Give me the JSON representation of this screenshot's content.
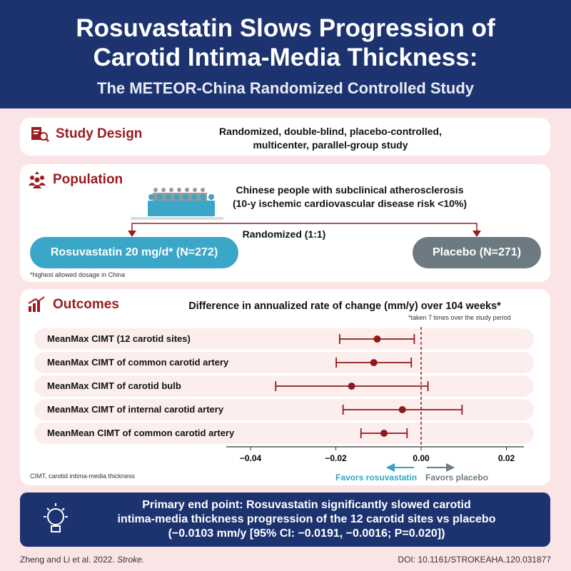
{
  "header": {
    "title_line1": "Rosuvastatin Slows Progression of",
    "title_line2": "Carotid Intima-Media Thickness:",
    "subtitle": "The METEOR-China Randomized Controlled Study"
  },
  "study_design": {
    "heading": "Study Design",
    "icon": "document-search-icon",
    "text_line1": "Randomized, double-blind, placebo-controlled,",
    "text_line2": "multicenter, parallel-group study"
  },
  "population": {
    "heading": "Population",
    "icon": "people-group-icon",
    "text_line1": "Chinese people with subclinical atherosclerosis",
    "text_line2": "(10-y ischemic cardiovascular disease risk <10%)",
    "randomized": "Randomized (1:1)",
    "arm1": "Rosuvastatin 20 mg/d* (N=272)",
    "arm2": "Placebo (N=271)",
    "footnote": "*highest allowed dosage in China"
  },
  "outcomes": {
    "heading": "Outcomes",
    "icon": "bar-chart-icon",
    "title": "Difference in annualized rate of change (mm/y) over 104 weeks*",
    "note": "*taken 7 times over the study period",
    "abbrev": "CIMT, carotid intima-media thickness",
    "favors_left": "Favors rosuvastatin",
    "favors_right": "Favors placebo"
  },
  "chart_data": {
    "type": "forest",
    "title": "Difference in annualized rate of change (mm/y) over 104 weeks*",
    "categories": [
      "MeanMax CIMT (12 carotid sites)",
      "MeanMax CIMT of common carotid artery",
      "MeanMax CIMT of carotid bulb",
      "MeanMax CIMT of internal carotid artery",
      "MeanMean CIMT of common carotid artery"
    ],
    "estimates": [
      -0.0103,
      -0.0111,
      -0.0163,
      -0.0044,
      -0.0087
    ],
    "ci_low": [
      -0.0191,
      -0.0199,
      -0.0341,
      -0.0183,
      -0.0141
    ],
    "ci_high": [
      -0.0016,
      -0.0023,
      0.0016,
      0.0096,
      -0.0033
    ],
    "xticks": [
      "−0.04",
      "−0.02",
      "0.00",
      "0.02"
    ],
    "xtick_values": [
      -0.04,
      -0.02,
      0,
      0.02
    ],
    "xlim": [
      -0.0457,
      0.0241
    ],
    "reference_line": 0,
    "colors": {
      "marker": "#8e1a1c",
      "favors_rosuvastatin": "#37a3c4",
      "favors_placebo": "#6e7c84"
    }
  },
  "primary": {
    "icon": "lightbulb-icon",
    "line1": "Primary end point: Rosuvastatin significantly slowed carotid",
    "line2": "intima-media thickness progression of the 12 carotid sites vs placebo",
    "line3": "(−0.0103 mm/y [95% CI: −0.0191, −0.0016; P=0.020])"
  },
  "footer": {
    "citation": "Zheng and Li et al. 2022.",
    "journal": "Stroke.",
    "doi": "DOI: 10.1161/STROKEAHA.120.031877"
  },
  "colors": {
    "navy": "#1d3370",
    "red": "#9b1b1e",
    "teal": "#3aa6c8",
    "gray": "#6d7a82",
    "pink": "#fbe4e5"
  }
}
